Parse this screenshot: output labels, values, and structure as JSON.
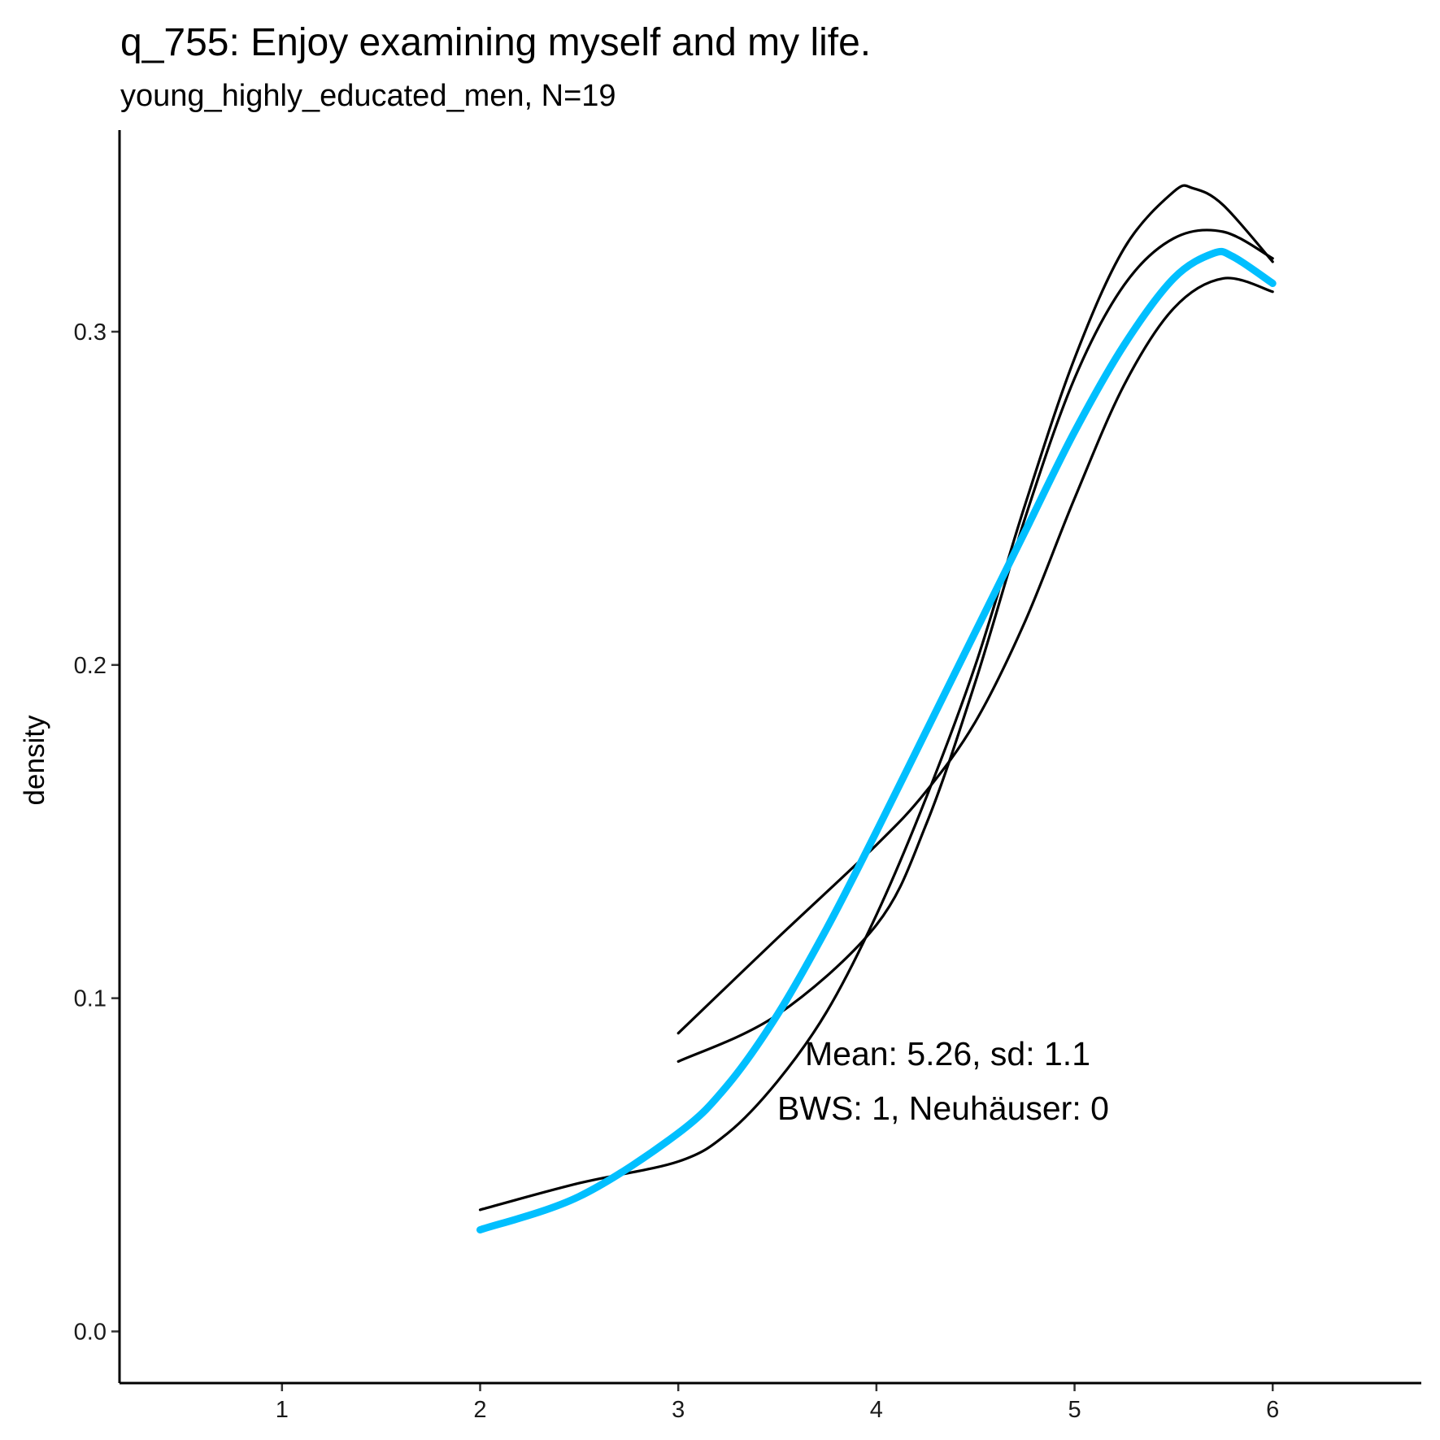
{
  "chart_data": {
    "type": "line",
    "title": "q_755: Enjoy examining myself and my life.",
    "subtitle": "young_highly_educated_men, N=19",
    "xlabel": "",
    "ylabel": "density",
    "xlim": [
      0.18,
      6.75
    ],
    "ylim": [
      -0.0155,
      0.3605
    ],
    "x_ticks": [
      1,
      2,
      3,
      4,
      5,
      6
    ],
    "x_tick_labels": [
      "1",
      "2",
      "3",
      "4",
      "5",
      "6"
    ],
    "y_ticks": [
      0.0,
      0.1,
      0.2,
      0.3
    ],
    "y_tick_labels": [
      "0.0",
      "0.1",
      "0.2",
      "0.3"
    ],
    "grid": false,
    "legend": "none",
    "series": [
      {
        "name": "black curve A",
        "color": "#000000",
        "x": [
          2,
          2.5,
          3,
          3.25,
          3.5,
          3.75,
          4,
          4.25,
          4.5,
          4.75,
          5,
          5.25,
          5.5,
          5.6,
          5.75,
          6
        ],
        "y": [
          0.0365,
          0.0445,
          0.051,
          0.0595,
          0.075,
          0.096,
          0.125,
          0.16,
          0.2,
          0.248,
          0.292,
          0.325,
          0.342,
          0.343,
          0.338,
          0.321
        ]
      },
      {
        "name": "black curve B",
        "color": "#000000",
        "x": [
          3,
          3.5,
          4,
          4.25,
          4.5,
          4.75,
          5,
          5.25,
          5.5,
          5.75,
          6
        ],
        "y": [
          0.081,
          0.095,
          0.122,
          0.152,
          0.195,
          0.244,
          0.286,
          0.314,
          0.328,
          0.33,
          0.322
        ]
      },
      {
        "name": "black curve C",
        "color": "#000000",
        "x": [
          3,
          3.5,
          4,
          4.25,
          4.5,
          4.75,
          5,
          5.25,
          5.5,
          5.75,
          6
        ],
        "y": [
          0.0895,
          0.118,
          0.146,
          0.162,
          0.183,
          0.213,
          0.25,
          0.284,
          0.307,
          0.316,
          0.312
        ]
      },
      {
        "name": "fitted curve",
        "color": "#00BFFF",
        "x": [
          2,
          2.5,
          3,
          3.25,
          3.5,
          3.75,
          4,
          4.25,
          4.5,
          4.75,
          5,
          5.25,
          5.5,
          5.7,
          5.8,
          6
        ],
        "y": [
          0.0305,
          0.0405,
          0.0595,
          0.074,
          0.095,
          0.121,
          0.15,
          0.18,
          0.21,
          0.24,
          0.27,
          0.296,
          0.316,
          0.3235,
          0.3225,
          0.3145
        ]
      }
    ],
    "annotations": [
      "Mean: 5.26, sd: 1.1",
      "BWS: 1, Neuhäuser: 0"
    ]
  }
}
